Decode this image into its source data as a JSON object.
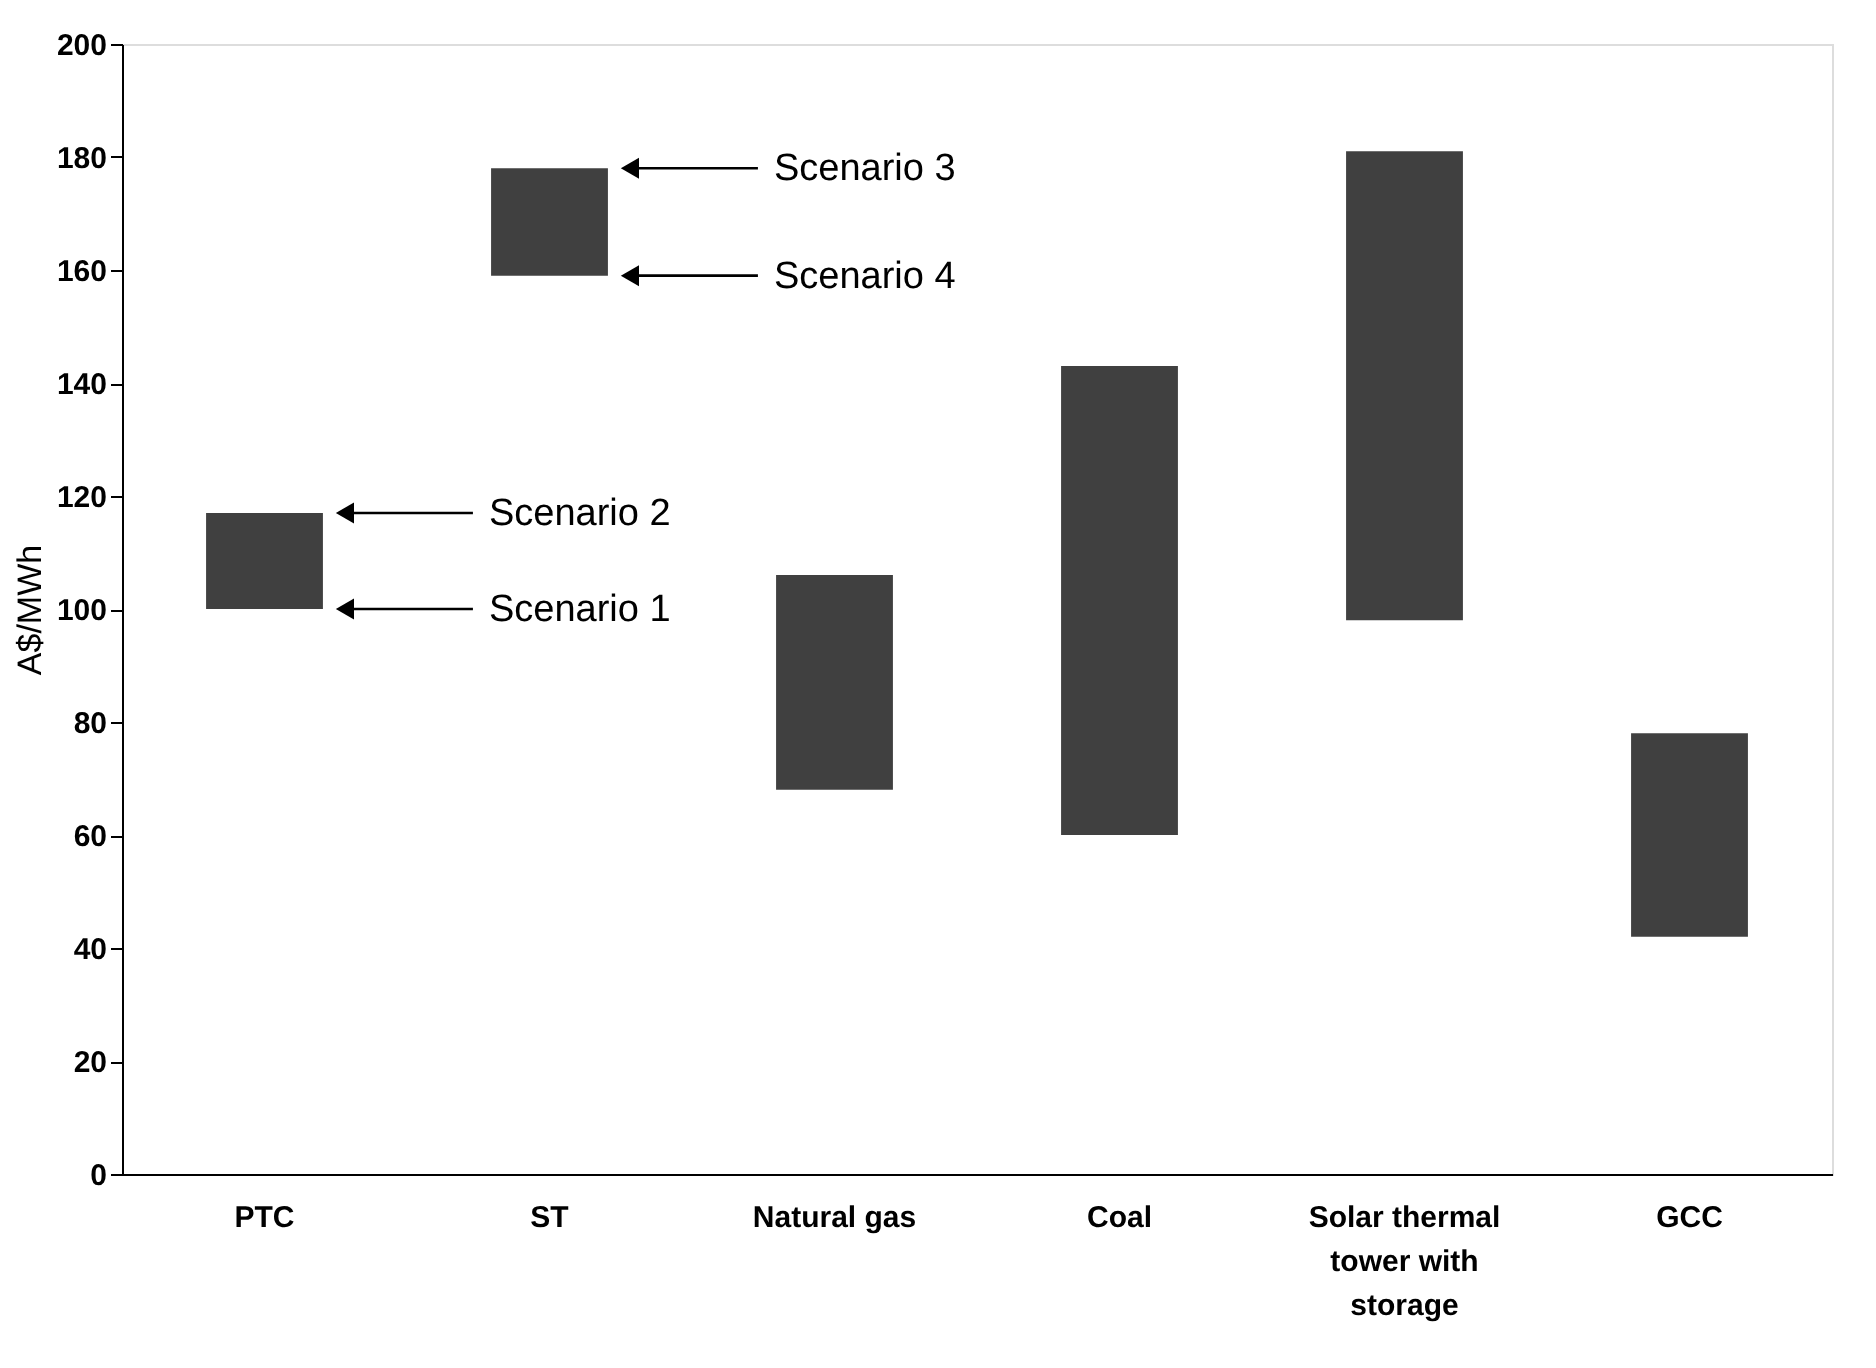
{
  "chart_data": {
    "type": "bar",
    "ylabel": "A$/MWh",
    "categories": [
      "PTC",
      "ST",
      "Natural gas",
      "Coal",
      "Solar thermal tower with storage",
      "GCC"
    ],
    "base": [
      100,
      159,
      68,
      60,
      98,
      42
    ],
    "values": [
      17,
      19,
      38,
      83,
      83,
      36
    ],
    "color": "#404040",
    "ylim": [
      0,
      200
    ],
    "yticks": [
      0,
      20,
      40,
      60,
      80,
      100,
      120,
      140,
      160,
      180,
      200
    ],
    "grid": false,
    "annotations": [
      "Scenario 3",
      "Scenario 4",
      "Scenario 2",
      "Scenario 1"
    ]
  }
}
